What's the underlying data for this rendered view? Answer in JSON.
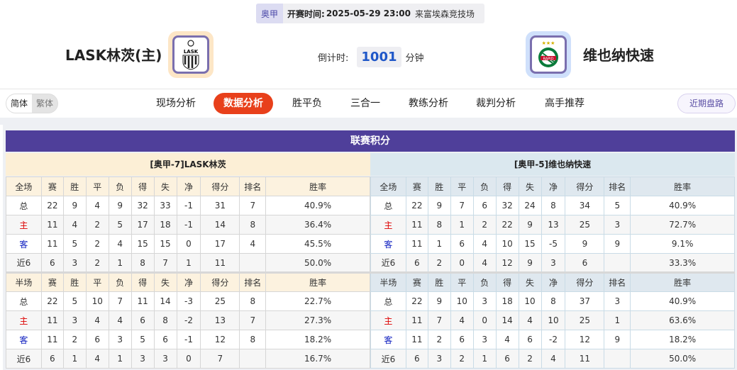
{
  "match": {
    "league": "奥甲",
    "time_label": "开赛时间:",
    "time": "2025-05-29 23:00",
    "venue": "来富埃森竞技场",
    "home": "LASK林茨(主)",
    "away": "维也纳快速",
    "countdown_label": "倒计时:",
    "countdown": "1001",
    "countdown_unit": "分钟"
  },
  "lang": {
    "simplified": "简体",
    "traditional": "繁体"
  },
  "nav": [
    "现场分析",
    "数据分析",
    "胜平负",
    "三合一",
    "教练分析",
    "裁判分析",
    "高手推荐"
  ],
  "nav_active": "数据分析",
  "recent": "近期盘路",
  "section_title": "联赛积分",
  "colors": {
    "title_bar": "#4f3f9a",
    "active_tab": "#e8401b",
    "home_red": "#dd0000",
    "away_blue": "#1020c0"
  },
  "standings": [
    {
      "team_header": "[奥甲-7]LASK林茨",
      "full": {
        "header": [
          "全场",
          "赛",
          "胜",
          "平",
          "负",
          "得",
          "失",
          "净",
          "得分",
          "排名",
          "胜率"
        ],
        "rows": [
          [
            "总",
            "22",
            "9",
            "4",
            "9",
            "32",
            "33",
            "-1",
            "31",
            "7",
            "40.9%"
          ],
          [
            "主",
            "11",
            "4",
            "2",
            "5",
            "17",
            "18",
            "-1",
            "14",
            "8",
            "36.4%"
          ],
          [
            "客",
            "11",
            "5",
            "2",
            "4",
            "15",
            "15",
            "0",
            "17",
            "4",
            "45.5%"
          ],
          [
            "近6",
            "6",
            "3",
            "2",
            "1",
            "8",
            "7",
            "1",
            "11",
            "",
            "50.0%"
          ]
        ]
      },
      "half": {
        "header": [
          "半场",
          "赛",
          "胜",
          "平",
          "负",
          "得",
          "失",
          "净",
          "得分",
          "排名",
          "胜率"
        ],
        "rows": [
          [
            "总",
            "22",
            "5",
            "10",
            "7",
            "11",
            "14",
            "-3",
            "25",
            "8",
            "22.7%"
          ],
          [
            "主",
            "11",
            "3",
            "4",
            "4",
            "6",
            "8",
            "-2",
            "13",
            "7",
            "27.3%"
          ],
          [
            "客",
            "11",
            "2",
            "6",
            "3",
            "5",
            "6",
            "-1",
            "12",
            "8",
            "18.2%"
          ],
          [
            "近6",
            "6",
            "1",
            "4",
            "1",
            "3",
            "3",
            "0",
            "7",
            "",
            "16.7%"
          ]
        ]
      }
    },
    {
      "team_header": "[奥甲-5]维也纳快速",
      "full": {
        "header": [
          "全场",
          "赛",
          "胜",
          "平",
          "负",
          "得",
          "失",
          "净",
          "得分",
          "排名",
          "胜率"
        ],
        "rows": [
          [
            "总",
            "22",
            "9",
            "7",
            "6",
            "32",
            "24",
            "8",
            "34",
            "5",
            "40.9%"
          ],
          [
            "主",
            "11",
            "8",
            "1",
            "2",
            "22",
            "9",
            "13",
            "25",
            "3",
            "72.7%"
          ],
          [
            "客",
            "11",
            "1",
            "6",
            "4",
            "10",
            "15",
            "-5",
            "9",
            "9",
            "9.1%"
          ],
          [
            "近6",
            "6",
            "2",
            "0",
            "4",
            "12",
            "9",
            "3",
            "6",
            "",
            "33.3%"
          ]
        ]
      },
      "half": {
        "header": [
          "半场",
          "赛",
          "胜",
          "平",
          "负",
          "得",
          "失",
          "净",
          "得分",
          "排名",
          "胜率"
        ],
        "rows": [
          [
            "总",
            "22",
            "9",
            "10",
            "3",
            "18",
            "10",
            "8",
            "37",
            "3",
            "40.9%"
          ],
          [
            "主",
            "11",
            "7",
            "4",
            "0",
            "14",
            "4",
            "10",
            "25",
            "1",
            "63.6%"
          ],
          [
            "客",
            "11",
            "2",
            "6",
            "3",
            "4",
            "6",
            "-2",
            "12",
            "9",
            "18.2%"
          ],
          [
            "近6",
            "6",
            "3",
            "2",
            "1",
            "6",
            "2",
            "4",
            "11",
            "",
            "50.0%"
          ]
        ]
      }
    }
  ]
}
